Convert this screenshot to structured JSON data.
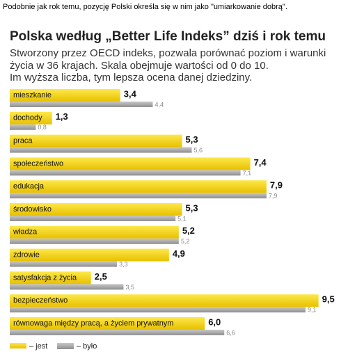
{
  "caption": "Podobnie jak rok temu, pozycję Polski określa się w nim jako \"umiarkowanie dobrą\".",
  "chart_data": {
    "type": "bar",
    "orientation": "horizontal",
    "title": "Polska według „Better Life Indeks” dziś i rok temu",
    "subtitle": [
      "Stworzony przez OECD indeks, pozwala porównać poziom i warunki",
      "życia w 36 krajach. Skala obejmuje wartości od 0 do 10.",
      "Im wyższa liczba, tym lepsza ocena danej dziedziny."
    ],
    "categories": [
      "mieszkanie",
      "dochody",
      "praca",
      "społeczeństwo",
      "edukacja",
      "środowisko",
      "władza",
      "zdrowie",
      "satysfakcja z życia",
      "bezpieczeństwo",
      "równowaga między pracą, a życiem prywatnym"
    ],
    "series": [
      {
        "name": "– jest",
        "color": "#f5d000",
        "values": [
          3.4,
          1.3,
          5.3,
          7.4,
          7.9,
          5.3,
          5.2,
          4.9,
          2.5,
          9.5,
          6.0
        ],
        "value_labels": [
          "3,4",
          "1,3",
          "5,3",
          "7,4",
          "7,9",
          "5,3",
          "5,2",
          "4,9",
          "2,5",
          "9,5",
          "6,0"
        ]
      },
      {
        "name": "– było",
        "color": "#a9a9a9",
        "values": [
          4.4,
          0.8,
          5.6,
          7.1,
          7.9,
          5.1,
          5.2,
          3.3,
          3.5,
          9.1,
          6.6
        ],
        "value_labels": [
          "4,4",
          "0,8",
          "5,6",
          "7,1",
          "7,9",
          "5,1",
          "5,2",
          "3,3",
          "3,5",
          "9,1",
          "6,6"
        ]
      }
    ]
  }
}
